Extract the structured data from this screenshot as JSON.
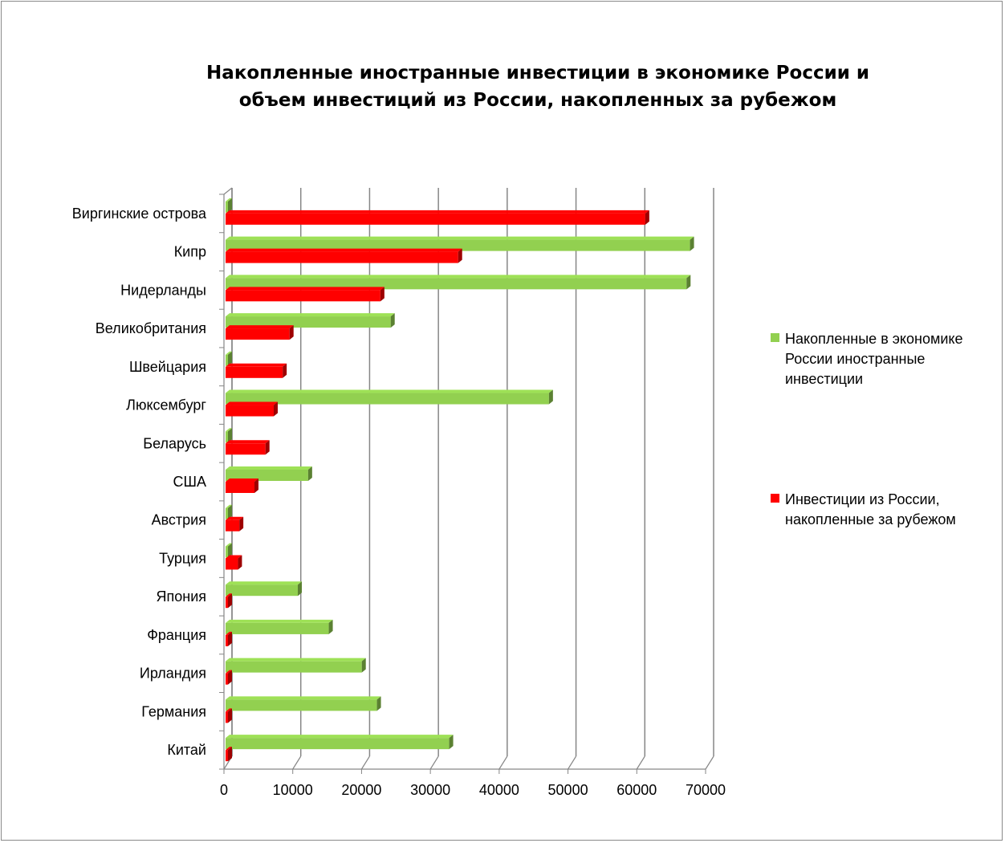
{
  "chart_data": {
    "type": "bar",
    "orientation": "horizontal",
    "title_lines": [
      "Накопленные иностранные инвестиции в экономике России и",
      "объем инвестиций из России, накопленных  за рубежом"
    ],
    "categories": [
      "Виргинские острова",
      "Кипр",
      "Нидерланды",
      "Великобритания",
      "Швейцария",
      "Люксембург",
      "Беларусь",
      "США",
      "Австрия",
      "Турция",
      "Япония",
      "Франция",
      "Ирландия",
      "Германия",
      "Китай"
    ],
    "series": [
      {
        "name_lines": [
          "Накопленные в экономике",
          "России иностранные",
          "инвестиции"
        ],
        "color": "#92D050",
        "values": [
          0,
          67500,
          67000,
          24000,
          0,
          47000,
          0,
          12000,
          0,
          0,
          10500,
          15000,
          19800,
          22000,
          32500
        ]
      },
      {
        "name_lines": [
          "Инвестиции из России,",
          "накопленные за рубежом"
        ],
        "color": "#FF0000",
        "values": [
          61000,
          33800,
          22500,
          9300,
          8300,
          7000,
          5800,
          4200,
          2000,
          1800,
          300,
          300,
          300,
          300,
          300
        ]
      }
    ],
    "x_ticks": [
      "0",
      "10000",
      "20000",
      "30000",
      "40000",
      "50000",
      "60000",
      "70000"
    ],
    "xlim": [
      0,
      70000
    ],
    "grid": true,
    "legend_position": "right"
  }
}
